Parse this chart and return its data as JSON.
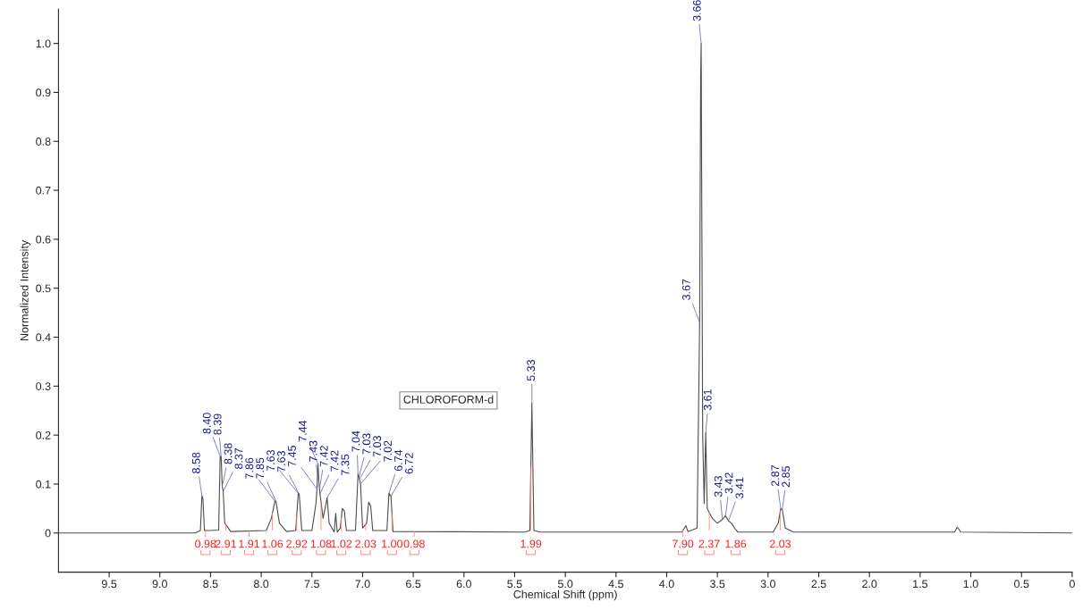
{
  "chart_data": {
    "type": "line",
    "xlabel": "Chemical Shift (ppm)",
    "ylabel": "Normalized Intensity",
    "x": [
      10.0,
      8.65,
      8.6,
      8.585,
      8.575,
      8.56,
      8.5,
      8.42,
      8.405,
      8.395,
      8.385,
      8.375,
      8.36,
      8.3,
      7.95,
      7.9,
      7.865,
      7.855,
      7.82,
      7.75,
      7.66,
      7.635,
      7.625,
      7.6,
      7.5,
      7.46,
      7.45,
      7.44,
      7.43,
      7.425,
      7.42,
      7.39,
      7.37,
      7.35,
      7.33,
      7.28,
      7.265,
      7.25,
      7.22,
      7.2,
      7.18,
      7.16,
      7.07,
      7.045,
      7.035,
      7.03,
      7.02,
      7.0,
      6.96,
      6.94,
      6.92,
      6.9,
      6.76,
      6.74,
      6.72,
      6.7,
      5.4,
      5.35,
      5.33,
      5.31,
      5.25,
      3.85,
      3.81,
      3.79,
      3.7,
      3.675,
      3.665,
      3.66,
      3.645,
      3.63,
      3.615,
      3.6,
      3.55,
      3.5,
      3.45,
      3.42,
      3.39,
      3.36,
      3.33,
      3.3,
      2.95,
      2.9,
      2.875,
      2.86,
      2.83,
      2.75,
      1.16,
      1.135,
      1.125,
      1.1,
      0.0
    ],
    "series": [
      {
        "color": "#4d4d4d",
        "values": [
          0,
          0,
          0.005,
          0.076,
          0.07,
          0.005,
          0.005,
          0.006,
          0.157,
          0.155,
          0.095,
          0.085,
          0.02,
          0.003,
          0.005,
          0.03,
          0.065,
          0.065,
          0.02,
          0.003,
          0.005,
          0.081,
          0.079,
          0.005,
          0.005,
          0.06,
          0.09,
          0.141,
          0.1,
          0.09,
          0.08,
          0.03,
          0.05,
          0.072,
          0.02,
          0.002,
          0.04,
          0.002,
          0.01,
          0.05,
          0.045,
          0.005,
          0.005,
          0.12,
          0.115,
          0.11,
          0.1,
          0.01,
          0.02,
          0.063,
          0.055,
          0.005,
          0.005,
          0.081,
          0.075,
          0.003,
          0.002,
          0.005,
          0.265,
          0.005,
          0.002,
          0.002,
          0.015,
          0.003,
          0.01,
          0.43,
          0.93,
          1.0,
          0.2,
          0.06,
          0.205,
          0.05,
          0.03,
          0.02,
          0.028,
          0.035,
          0.025,
          0.02,
          0.01,
          0.002,
          0.002,
          0.02,
          0.05,
          0.048,
          0.01,
          0.002,
          0.002,
          0.012,
          0.01,
          0.002,
          0
        ]
      }
    ],
    "xlim": [
      10.0,
      0.0
    ],
    "xticks": [
      9.5,
      {
        "value": 9.0,
        "label": "9.0"
      },
      8.5,
      {
        "value": 8.0,
        "label": "8.0"
      },
      7.5,
      {
        "value": 7.0,
        "label": "7.0"
      },
      6.5,
      {
        "value": 6.0,
        "label": "6.0"
      },
      5.5,
      {
        "value": 5.0,
        "label": "5.0"
      },
      4.5,
      {
        "value": 4.0,
        "label": "4.0"
      },
      3.5,
      {
        "value": 3.0,
        "label": "3.0"
      },
      2.5,
      {
        "value": 2.0,
        "label": "2.0"
      },
      1.5,
      {
        "value": 1.0,
        "label": "1.0"
      },
      0.5,
      {
        "value": 0.0,
        "label": "0"
      }
    ],
    "ylim": [
      -0.08,
      1.07
    ],
    "yticks": [
      {
        "value": 0.0,
        "label": "0"
      },
      0.1,
      0.2,
      0.3,
      0.4,
      0.5,
      0.6,
      0.7,
      0.8,
      0.9,
      {
        "value": 1.0,
        "label": "1.0"
      }
    ],
    "grid": false,
    "legend": false,
    "marker": "none",
    "line_style": "solid",
    "annotations": [
      {
        "text": "8.58",
        "x": 8.585,
        "y": 0.076
      },
      {
        "text": "8.40",
        "x": 8.405,
        "y": 0.157
      },
      {
        "text": "8.39",
        "x": 8.395,
        "y": 0.155
      },
      {
        "text": "8.38",
        "x": 8.385,
        "y": 0.095
      },
      {
        "text": "8.37",
        "x": 8.375,
        "y": 0.085
      },
      {
        "text": "7.86",
        "x": 7.865,
        "y": 0.065
      },
      {
        "text": "7.85",
        "x": 7.855,
        "y": 0.065
      },
      {
        "text": "7.63",
        "x": 7.635,
        "y": 0.081
      },
      {
        "text": "7.63",
        "x": 7.625,
        "y": 0.079
      },
      {
        "text": "7.45",
        "x": 7.45,
        "y": 0.09
      },
      {
        "text": "7.44",
        "x": 7.44,
        "y": 0.141
      },
      {
        "text": "7.43",
        "x": 7.43,
        "y": 0.1
      },
      {
        "text": "7.42",
        "x": 7.425,
        "y": 0.09
      },
      {
        "text": "7.42",
        "x": 7.42,
        "y": 0.08
      },
      {
        "text": "7.35",
        "x": 7.35,
        "y": 0.072
      },
      {
        "text": "7.04",
        "x": 7.045,
        "y": 0.12
      },
      {
        "text": "7.03",
        "x": 7.035,
        "y": 0.115
      },
      {
        "text": "7.03",
        "x": 7.03,
        "y": 0.11
      },
      {
        "text": "7.02",
        "x": 7.02,
        "y": 0.1
      },
      {
        "text": "6.74",
        "x": 6.74,
        "y": 0.081
      },
      {
        "text": "6.72",
        "x": 6.72,
        "y": 0.075
      },
      {
        "text": "5.33",
        "x": 5.33,
        "y": 0.265
      },
      {
        "text": "3.67",
        "x": 3.675,
        "y": 0.43
      },
      {
        "text": "3.66",
        "x": 3.66,
        "y": 1.0
      },
      {
        "text": "3.61",
        "x": 3.615,
        "y": 0.205
      },
      {
        "text": "3.43",
        "x": 3.45,
        "y": 0.028
      },
      {
        "text": "3.42",
        "x": 3.42,
        "y": 0.035
      },
      {
        "text": "3.41",
        "x": 3.39,
        "y": 0.025
      },
      {
        "text": "2.87",
        "x": 2.875,
        "y": 0.05
      },
      {
        "text": "2.85",
        "x": 2.86,
        "y": 0.048
      },
      {
        "text": "0.98",
        "x": 8.55,
        "y": 0.005
      },
      {
        "text": "2.91",
        "x": 8.35,
        "y": 0.017
      },
      {
        "text": "1.91",
        "x": 8.12,
        "y": 0.004
      },
      {
        "text": "1.06",
        "x": 7.89,
        "y": 0.04
      },
      {
        "text": "2.92",
        "x": 7.65,
        "y": 0.035
      },
      {
        "text": "1.08",
        "x": 7.41,
        "y": 0.063
      },
      {
        "text": "1.02",
        "x": 7.21,
        "y": 0.03
      },
      {
        "text": "2.03",
        "x": 6.97,
        "y": 0.018
      },
      {
        "text": "1.00",
        "x": 6.71,
        "y": 0.039
      },
      {
        "text": "0.98",
        "x": 6.49,
        "y": 0.003
      },
      {
        "text": "1.99",
        "x": 5.34,
        "y": 0.135
      },
      {
        "text": "7.90",
        "x": 3.84,
        "y": 0.005
      },
      {
        "text": "2.37",
        "x": 3.58,
        "y": 0.042
      },
      {
        "text": "1.86",
        "x": 3.32,
        "y": 0.007
      },
      {
        "text": "2.03",
        "x": 2.88,
        "y": 0.044
      },
      "CHLOROFORM-d"
    ]
  }
}
